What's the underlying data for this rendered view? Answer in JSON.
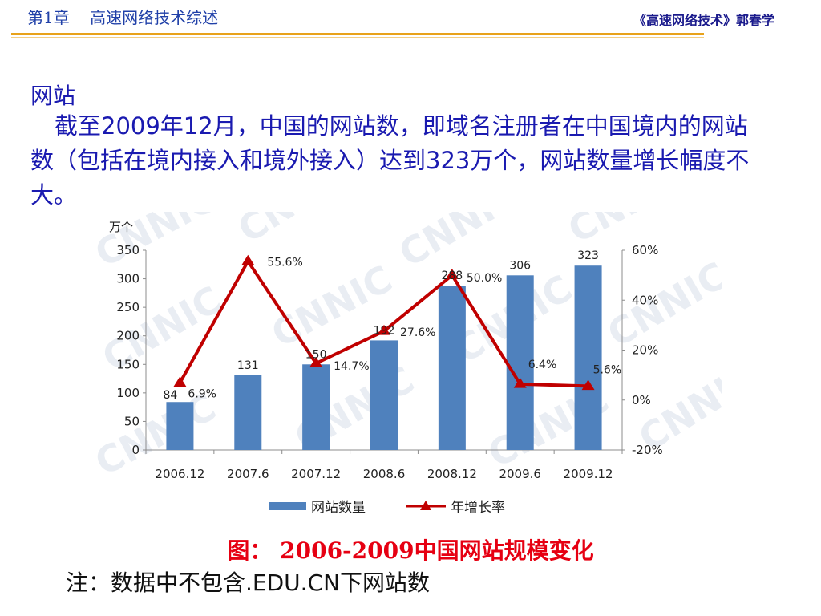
{
  "header": {
    "chapter": "第1章    高速网络技术综述",
    "course": "《高速网络技术》郭春学"
  },
  "section": {
    "title": "网站",
    "paragraph": "截至2009年12月，中国的网站数，即域名注册者在中国境内的网站数（包括在境内接入和境外接入）达到323万个，网站数量增长幅度不大。"
  },
  "chart_data": {
    "type": "bar",
    "categories": [
      "2006.12",
      "2007.6",
      "2007.12",
      "2008.6",
      "2008.12",
      "2009.6",
      "2009.12"
    ],
    "series": [
      {
        "name": "网站数量",
        "type": "bar",
        "axis": "left",
        "values": [
          84,
          131,
          150,
          192,
          288,
          306,
          323
        ],
        "color": "#4f81bd",
        "labels": [
          "84",
          "131",
          "150",
          "192",
          "288",
          "306",
          "323"
        ]
      },
      {
        "name": "年增长率",
        "type": "line",
        "axis": "right",
        "values": [
          6.9,
          55.6,
          14.7,
          27.6,
          50.0,
          6.4,
          5.6
        ],
        "color": "#c00000",
        "labels": [
          "6.9%",
          "55.6%",
          "14.7%",
          "27.6%",
          "50.0%",
          "6.4%",
          "5.6%"
        ]
      }
    ],
    "y_left": {
      "unit_label": "万个",
      "ticks": [
        "0",
        "50",
        "100",
        "150",
        "200",
        "250",
        "300",
        "350"
      ],
      "range": [
        0,
        350
      ]
    },
    "y_right": {
      "ticks": [
        "-20%",
        "0%",
        "20%",
        "40%",
        "60%"
      ],
      "range": [
        -20,
        60
      ]
    },
    "legend_position": "bottom",
    "watermark": "CNNIC"
  },
  "caption": "图： 2006-2009中国网站规模变化",
  "note": "注：数据中不包含.EDU.CN下网站数"
}
